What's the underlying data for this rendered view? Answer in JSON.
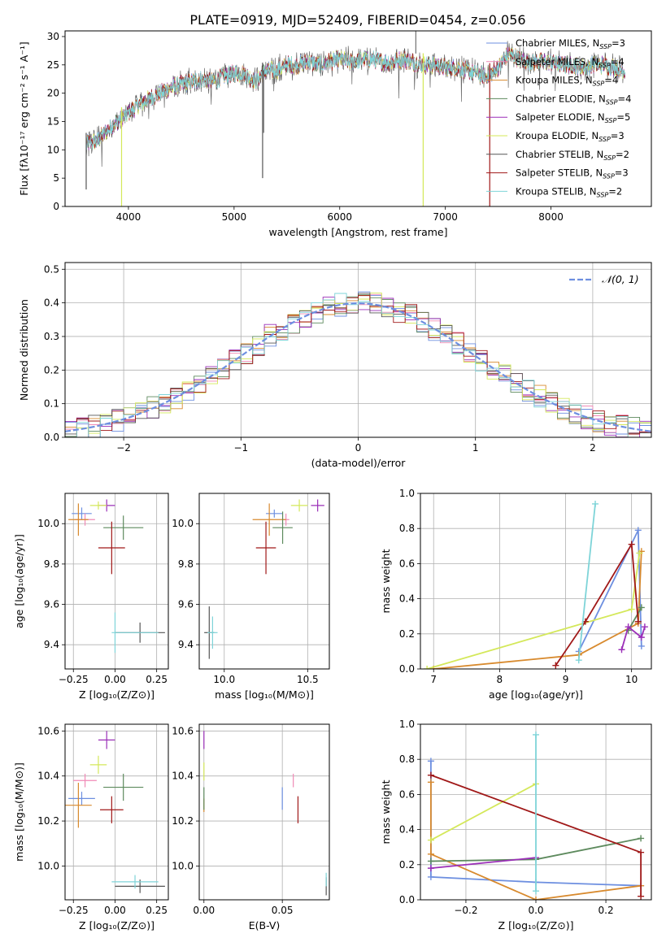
{
  "figure": {
    "title": "PLATE=0919, MJD=52409, FIBERID=0454, z=0.056"
  },
  "chart_data": [
    {
      "id": "spectrum",
      "type": "line",
      "xlabel": "wavelength [Angstrom, rest frame]",
      "ylabel": "Flux [fλ10⁻¹⁷ erg cm⁻² s⁻¹ A⁻¹]",
      "xlim": [
        3400,
        8950
      ],
      "ylim": [
        0,
        31
      ],
      "xticks": [
        4000,
        5000,
        6000,
        7000,
        8000
      ],
      "yticks": [
        0,
        5,
        10,
        15,
        20,
        25,
        30
      ],
      "grid": false,
      "legend_position": "right",
      "legend": [
        {
          "name": "Chabrier MILES, N",
          "sub": "SSP",
          "tail": "=3",
          "color": "#6d8fe0"
        },
        {
          "name": "Salpeter MILES, N",
          "sub": "SSP",
          "tail": "=4",
          "color": "#f08ab6"
        },
        {
          "name": "Kroupa MILES, N",
          "sub": "SSP",
          "tail": "=4",
          "color": "#d88a2e"
        },
        {
          "name": "Chabrier ELODIE, N",
          "sub": "SSP",
          "tail": "=4",
          "color": "#5d8a5d"
        },
        {
          "name": "Salpeter ELODIE, N",
          "sub": "SSP",
          "tail": "=5",
          "color": "#9b2fb8"
        },
        {
          "name": "Kroupa ELODIE, N",
          "sub": "SSP",
          "tail": "=3",
          "color": "#d4e85a"
        },
        {
          "name": "Chabrier STELIB, N",
          "sub": "SSP",
          "tail": "=2",
          "color": "#555555"
        },
        {
          "name": "Salpeter STELIB, N",
          "sub": "SSP",
          "tail": "=3",
          "color": "#a01818"
        },
        {
          "name": "Kroupa STELIB, N",
          "sub": "SSP",
          "tail": "=2",
          "color": "#7ed4d8"
        }
      ],
      "continuum": [
        [
          3600,
          11
        ],
        [
          3700,
          11.5
        ],
        [
          3800,
          13.5
        ],
        [
          3900,
          15
        ],
        [
          4000,
          16.5
        ],
        [
          4100,
          18
        ],
        [
          4200,
          19
        ],
        [
          4300,
          20
        ],
        [
          4400,
          21
        ],
        [
          4500,
          21.5
        ],
        [
          4600,
          22
        ],
        [
          4700,
          22.5
        ],
        [
          4800,
          22
        ],
        [
          4900,
          23
        ],
        [
          5000,
          23.5
        ],
        [
          5100,
          23.5
        ],
        [
          5200,
          22
        ],
        [
          5300,
          24
        ],
        [
          5400,
          24
        ],
        [
          5500,
          25
        ],
        [
          5600,
          25
        ],
        [
          5700,
          25.5
        ],
        [
          5800,
          25
        ],
        [
          5900,
          25.5
        ],
        [
          6000,
          26
        ],
        [
          6100,
          25.5
        ],
        [
          6200,
          26
        ],
        [
          6300,
          26
        ],
        [
          6400,
          25.5
        ],
        [
          6500,
          25.5
        ],
        [
          6600,
          26
        ],
        [
          6700,
          25.5
        ],
        [
          6800,
          25
        ],
        [
          6900,
          25
        ],
        [
          7000,
          24.5
        ],
        [
          7100,
          24.5
        ],
        [
          7200,
          24
        ],
        [
          7300,
          23.5
        ],
        [
          7400,
          23
        ],
        [
          7500,
          24.5
        ],
        [
          7600,
          27
        ],
        [
          7700,
          26
        ],
        [
          7800,
          25.5
        ],
        [
          7900,
          25.5
        ],
        [
          8000,
          25.5
        ],
        [
          8100,
          25
        ],
        [
          8200,
          25
        ],
        [
          8300,
          24.5
        ],
        [
          8400,
          25
        ],
        [
          8500,
          25
        ],
        [
          8600,
          24.5
        ],
        [
          8700,
          24
        ]
      ],
      "absorption_features": [
        {
          "x": 3935,
          "y": 0
        },
        {
          "x": 5270,
          "y": 5
        },
        {
          "x": 6790,
          "y": 0
        },
        {
          "x": 7420,
          "y": 0
        },
        {
          "x": 3600,
          "y": 3
        }
      ]
    },
    {
      "id": "residuals",
      "type": "line",
      "xlabel": "(data-model)/error",
      "ylabel": "Normed distribution",
      "xlim": [
        -2.5,
        2.5
      ],
      "ylim": [
        0,
        0.52
      ],
      "xticks": [
        -2,
        -1,
        0,
        1,
        2
      ],
      "yticks": [
        0.0,
        0.1,
        0.2,
        0.3,
        0.4,
        0.5
      ],
      "grid": true,
      "legend_position": "upper right",
      "legend": [
        {
          "name": "𝒩(0, 1)",
          "color": "#6d8fe0"
        }
      ],
      "model": {
        "name": "𝒩(0, 1)",
        "mu": 0,
        "sigma": 1
      },
      "hist_bins": {
        "start": -2.5,
        "width": 0.1,
        "count": 50
      }
    },
    {
      "id": "age_vs_Z",
      "type": "scatter",
      "xlabel": "Z [log₁₀(Z/Z⊙)]",
      "ylabel": "age  [log₁₀(age/yr)]",
      "xlim": [
        -0.3,
        0.32
      ],
      "ylim": [
        9.28,
        10.15
      ],
      "xticks": [
        -0.25,
        0.0,
        0.25
      ],
      "yticks": [
        9.4,
        9.6,
        9.8,
        10.0
      ],
      "grid": true,
      "points": [
        {
          "x": -0.2,
          "y": 10.05,
          "xerr": 0.06,
          "yerr": 0.03,
          "color": "#6d8fe0"
        },
        {
          "x": -0.18,
          "y": 10.02,
          "xerr": 0.06,
          "yerr": 0.03,
          "color": "#f08ab6"
        },
        {
          "x": -0.22,
          "y": 10.02,
          "xerr": 0.06,
          "yerr": 0.08,
          "color": "#d88a2e"
        },
        {
          "x": 0.05,
          "y": 9.98,
          "xerr": 0.12,
          "yerr": 0.06,
          "color": "#5d8a5d"
        },
        {
          "x": -0.05,
          "y": 10.09,
          "xerr": 0.05,
          "yerr": 0.03,
          "color": "#9b2fb8"
        },
        {
          "x": -0.1,
          "y": 10.09,
          "xerr": 0.05,
          "yerr": 0.02,
          "color": "#d4e85a"
        },
        {
          "x": 0.15,
          "y": 9.46,
          "xerr": 0.15,
          "yerr": 0.05,
          "color": "#555555"
        },
        {
          "x": -0.02,
          "y": 9.88,
          "xerr": 0.08,
          "yerr": 0.13,
          "color": "#a01818"
        },
        {
          "x": 0.0,
          "y": 9.46,
          "xerr": 0.0,
          "yerr": 0.1,
          "color": "#7ed4d8"
        },
        {
          "x": 0.12,
          "y": 9.46,
          "xerr": 0.14,
          "yerr": 0.0,
          "color": "#7ed4d8"
        }
      ]
    },
    {
      "id": "age_vs_mass",
      "type": "scatter",
      "xlabel": "mass [log₁₀(M/M⊙)]",
      "ylabel": "",
      "xlim": [
        9.85,
        10.63
      ],
      "ylim": [
        9.28,
        10.15
      ],
      "xticks": [
        10.0,
        10.5
      ],
      "yticks": [
        9.4,
        9.6,
        9.8,
        10.0
      ],
      "grid": true,
      "points": [
        {
          "x": 10.3,
          "y": 10.05,
          "xerr": 0.05,
          "yerr": 0.02,
          "color": "#6d8fe0"
        },
        {
          "x": 10.37,
          "y": 10.02,
          "xerr": 0.02,
          "yerr": 0.03,
          "color": "#f08ab6"
        },
        {
          "x": 10.27,
          "y": 10.02,
          "xerr": 0.1,
          "yerr": 0.08,
          "color": "#d88a2e"
        },
        {
          "x": 10.35,
          "y": 9.98,
          "xerr": 0.06,
          "yerr": 0.08,
          "color": "#5d8a5d"
        },
        {
          "x": 10.56,
          "y": 10.09,
          "xerr": 0.04,
          "yerr": 0.03,
          "color": "#9b2fb8"
        },
        {
          "x": 10.45,
          "y": 10.09,
          "xerr": 0.05,
          "yerr": 0.03,
          "color": "#d4e85a"
        },
        {
          "x": 9.91,
          "y": 9.46,
          "xerr": 0.03,
          "yerr": 0.13,
          "color": "#555555"
        },
        {
          "x": 10.25,
          "y": 9.88,
          "xerr": 0.06,
          "yerr": 0.13,
          "color": "#a01818"
        },
        {
          "x": 9.93,
          "y": 9.46,
          "xerr": 0.03,
          "yerr": 0.08,
          "color": "#7ed4d8"
        }
      ]
    },
    {
      "id": "weight_vs_age",
      "type": "line",
      "xlabel": "age  [log₁₀(age/yr)]",
      "ylabel": "mass weight",
      "xlim": [
        6.8,
        10.3
      ],
      "ylim": [
        0,
        1.0
      ],
      "xticks": [
        7,
        8,
        9,
        10
      ],
      "yticks": [
        0.0,
        0.2,
        0.4,
        0.6,
        0.8,
        1.0
      ],
      "grid": true,
      "series": [
        {
          "color": "#6d8fe0",
          "x": [
            9.2,
            10.1,
            10.15
          ],
          "y": [
            0.1,
            0.79,
            0.13
          ]
        },
        {
          "color": "#d88a2e",
          "x": [
            7.0,
            9.2,
            10.1,
            10.15
          ],
          "y": [
            0.0,
            0.08,
            0.26,
            0.67
          ]
        },
        {
          "color": "#d4e85a",
          "x": [
            6.9,
            10.0,
            10.12
          ],
          "y": [
            0.0,
            0.34,
            0.66
          ]
        },
        {
          "color": "#5d8a5d",
          "x": [
            9.95,
            10.15
          ],
          "y": [
            0.22,
            0.35
          ]
        },
        {
          "color": "#9b2fb8",
          "x": [
            9.85,
            9.95,
            10.15,
            10.2
          ],
          "y": [
            0.11,
            0.24,
            0.18,
            0.24
          ]
        },
        {
          "color": "#a01818",
          "x": [
            8.85,
            9.3,
            10.0,
            10.1
          ],
          "y": [
            0.02,
            0.27,
            0.71,
            0.27
          ]
        },
        {
          "color": "#7ed4d8",
          "x": [
            9.2,
            9.45
          ],
          "y": [
            0.05,
            0.94
          ]
        }
      ]
    },
    {
      "id": "mass_vs_Z",
      "type": "scatter",
      "xlabel": "Z [log₁₀(Z/Z⊙)]",
      "ylabel": "mass [log₁₀(M/M⊙)]",
      "xlim": [
        -0.3,
        0.32
      ],
      "ylim": [
        9.85,
        10.63
      ],
      "xticks": [
        -0.25,
        0.0,
        0.25
      ],
      "yticks": [
        10.0,
        10.2,
        10.4,
        10.6
      ],
      "grid": true,
      "points": [
        {
          "x": -0.2,
          "y": 10.3,
          "xerr": 0.08,
          "yerr": 0.03,
          "color": "#6d8fe0"
        },
        {
          "x": -0.18,
          "y": 10.38,
          "xerr": 0.07,
          "yerr": 0.03,
          "color": "#f08ab6"
        },
        {
          "x": -0.22,
          "y": 10.27,
          "xerr": 0.08,
          "yerr": 0.1,
          "color": "#d88a2e"
        },
        {
          "x": 0.05,
          "y": 10.35,
          "xerr": 0.12,
          "yerr": 0.06,
          "color": "#5d8a5d"
        },
        {
          "x": -0.05,
          "y": 10.56,
          "xerr": 0.05,
          "yerr": 0.04,
          "color": "#9b2fb8"
        },
        {
          "x": -0.1,
          "y": 10.45,
          "xerr": 0.05,
          "yerr": 0.04,
          "color": "#d4e85a"
        },
        {
          "x": 0.15,
          "y": 9.91,
          "xerr": 0.15,
          "yerr": 0.03,
          "color": "#555555"
        },
        {
          "x": -0.02,
          "y": 10.25,
          "xerr": 0.07,
          "yerr": 0.06,
          "color": "#a01818"
        },
        {
          "x": 0.12,
          "y": 9.93,
          "xerr": 0.14,
          "yerr": 0.03,
          "color": "#7ed4d8"
        }
      ]
    },
    {
      "id": "mass_vs_ebv",
      "type": "scatter",
      "xlabel": "E(B-V)",
      "ylabel": "",
      "xlim": [
        -0.003,
        0.08
      ],
      "ylim": [
        9.85,
        10.63
      ],
      "xticks": [
        0.0,
        0.05
      ],
      "yticks": [
        10.0,
        10.2,
        10.4,
        10.6
      ],
      "grid": true,
      "points": [
        {
          "x": 0.05,
          "y": 10.3,
          "yerr": 0.05,
          "color": "#6d8fe0"
        },
        {
          "x": 0.057,
          "y": 10.38,
          "yerr": 0.03,
          "color": "#f08ab6"
        },
        {
          "x": 0.0,
          "y": 10.27,
          "yerr": 0.03,
          "color": "#d88a2e"
        },
        {
          "x": 0.0,
          "y": 10.3,
          "yerr": 0.05,
          "color": "#5d8a5d"
        },
        {
          "x": 0.0,
          "y": 10.56,
          "yerr": 0.04,
          "color": "#9b2fb8"
        },
        {
          "x": 0.0,
          "y": 10.42,
          "yerr": 0.04,
          "color": "#d4e85a"
        },
        {
          "x": 0.078,
          "y": 9.91,
          "yerr": 0.04,
          "color": "#555555"
        },
        {
          "x": 0.06,
          "y": 10.25,
          "yerr": 0.06,
          "color": "#a01818"
        },
        {
          "x": 0.078,
          "y": 9.94,
          "yerr": 0.03,
          "color": "#7ed4d8"
        }
      ]
    },
    {
      "id": "weight_vs_Z",
      "type": "line",
      "xlabel": "Z [log₁₀(Z/Z⊙)]",
      "ylabel": "mass weight",
      "xlim": [
        -0.33,
        0.33
      ],
      "ylim": [
        0,
        1.0
      ],
      "xticks": [
        -0.2,
        0.0,
        0.2
      ],
      "yticks": [
        0.0,
        0.2,
        0.4,
        0.6,
        0.8,
        1.0
      ],
      "grid": true,
      "series": [
        {
          "color": "#6d8fe0",
          "x": [
            -0.3,
            -0.3,
            0.0,
            0.3
          ],
          "y": [
            0.79,
            0.13,
            0.1,
            0.08
          ]
        },
        {
          "color": "#d88a2e",
          "x": [
            -0.3,
            -0.3,
            0.0,
            0.3
          ],
          "y": [
            0.67,
            0.26,
            0.0,
            0.08
          ]
        },
        {
          "color": "#d4e85a",
          "x": [
            -0.3,
            0.0
          ],
          "y": [
            0.34,
            0.66
          ]
        },
        {
          "color": "#5d8a5d",
          "x": [
            -0.3,
            0.0,
            0.3
          ],
          "y": [
            0.22,
            0.23,
            0.35
          ]
        },
        {
          "color": "#9b2fb8",
          "x": [
            -0.3,
            0.0
          ],
          "y": [
            0.18,
            0.24
          ]
        },
        {
          "color": "#a01818",
          "x": [
            -0.3,
            0.3,
            0.3
          ],
          "y": [
            0.71,
            0.27,
            0.02
          ]
        },
        {
          "color": "#7ed4d8",
          "x": [
            0.0,
            0.0
          ],
          "y": [
            0.94,
            0.05
          ]
        }
      ]
    }
  ]
}
